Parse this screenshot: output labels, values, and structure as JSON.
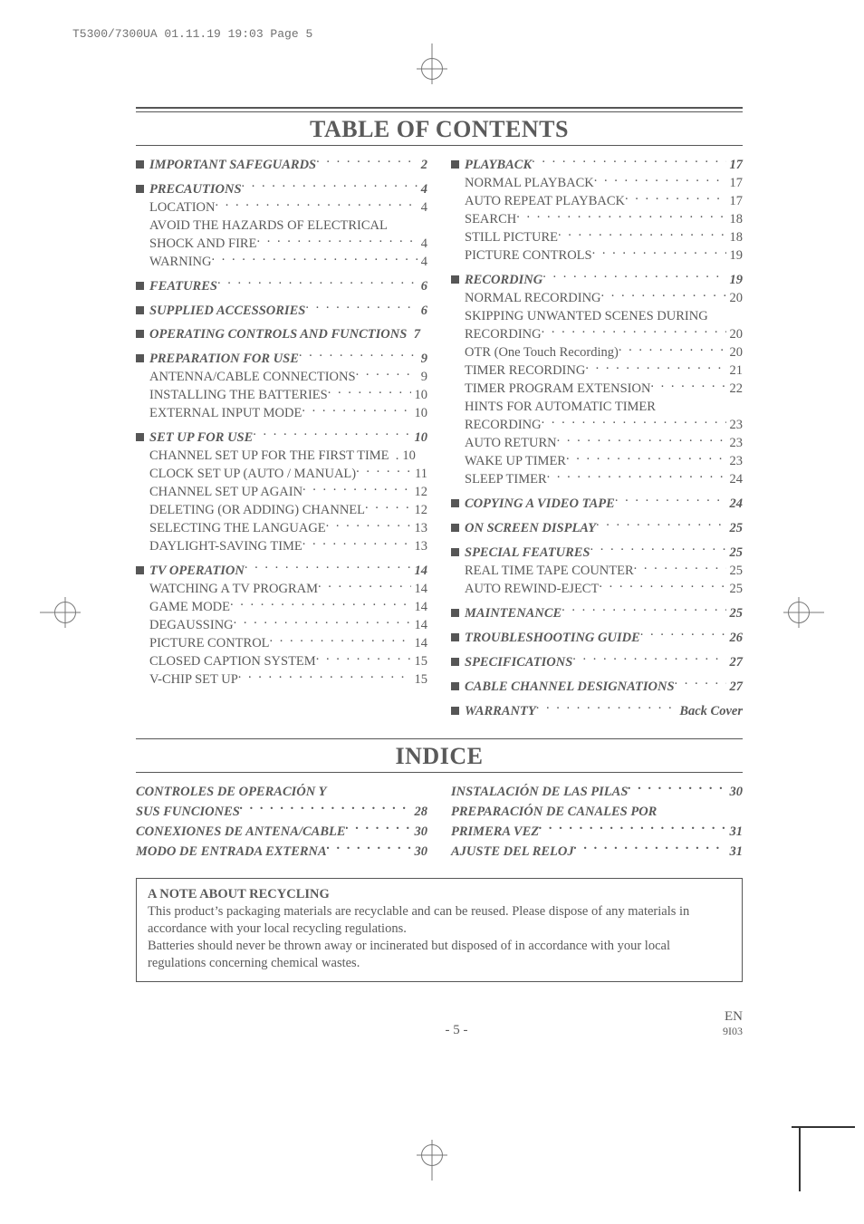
{
  "slug": "T5300/7300UA  01.11.19 19:03  Page 5",
  "heading1": "TABLE OF CONTENTS",
  "heading2": "INDICE",
  "left": [
    {
      "type": "h",
      "label": "IMPORTANT SAFEGUARDS",
      "page": "2"
    },
    {
      "type": "gap"
    },
    {
      "type": "h",
      "label": "PRECAUTIONS",
      "page": "4"
    },
    {
      "type": "s",
      "label": "LOCATION",
      "page": "4"
    },
    {
      "type": "s",
      "label": "AVOID THE HAZARDS OF ELECTRICAL",
      "nopage": true
    },
    {
      "type": "s",
      "label": "SHOCK AND FIRE",
      "page": "4",
      "cont": true
    },
    {
      "type": "s",
      "label": "WARNING",
      "page": "4"
    },
    {
      "type": "gap"
    },
    {
      "type": "h",
      "label": "FEATURES",
      "page": "6"
    },
    {
      "type": "gap"
    },
    {
      "type": "h",
      "label": "SUPPLIED ACCESSORIES",
      "page": "6"
    },
    {
      "type": "gap"
    },
    {
      "type": "h",
      "label": "OPERATING CONTROLS AND FUNCTIONS",
      "page": "7",
      "tight": true
    },
    {
      "type": "gap"
    },
    {
      "type": "h",
      "label": "PREPARATION FOR USE",
      "page": "9"
    },
    {
      "type": "s",
      "label": "ANTENNA/CABLE CONNECTIONS",
      "page": "9"
    },
    {
      "type": "s",
      "label": "INSTALLING THE BATTERIES",
      "page": "10"
    },
    {
      "type": "s",
      "label": "EXTERNAL INPUT MODE",
      "page": "10"
    },
    {
      "type": "gap"
    },
    {
      "type": "h",
      "label": "SET UP FOR USE",
      "page": "10"
    },
    {
      "type": "s",
      "label": "CHANNEL SET UP FOR THE FIRST TIME",
      "page": "10",
      "tight": true
    },
    {
      "type": "s",
      "label": "CLOCK SET UP (AUTO / MANUAL)",
      "page": "11"
    },
    {
      "type": "s",
      "label": "CHANNEL SET UP AGAIN",
      "page": "12"
    },
    {
      "type": "s",
      "label": "DELETING (OR ADDING) CHANNEL",
      "page": "12"
    },
    {
      "type": "s",
      "label": "SELECTING THE LANGUAGE",
      "page": "13"
    },
    {
      "type": "s",
      "label": "DAYLIGHT-SAVING TIME",
      "page": "13"
    },
    {
      "type": "gap"
    },
    {
      "type": "h",
      "label": "TV OPERATION",
      "page": "14"
    },
    {
      "type": "s",
      "label": "WATCHING A TV PROGRAM",
      "page": "14"
    },
    {
      "type": "s",
      "label": "GAME MODE",
      "page": "14"
    },
    {
      "type": "s",
      "label": "DEGAUSSING",
      "page": "14"
    },
    {
      "type": "s",
      "label": "PICTURE CONTROL",
      "page": "14"
    },
    {
      "type": "s",
      "label": "CLOSED CAPTION SYSTEM",
      "page": "15"
    },
    {
      "type": "s",
      "label": "V-CHIP SET UP",
      "page": "15"
    }
  ],
  "right": [
    {
      "type": "h",
      "label": "PLAYBACK",
      "page": "17"
    },
    {
      "type": "s",
      "label": "NORMAL PLAYBACK",
      "page": "17"
    },
    {
      "type": "s",
      "label": "AUTO REPEAT PLAYBACK",
      "page": "17"
    },
    {
      "type": "s",
      "label": "SEARCH",
      "page": "18"
    },
    {
      "type": "s",
      "label": "STILL PICTURE",
      "page": "18"
    },
    {
      "type": "s",
      "label": "PICTURE CONTROLS",
      "page": "19"
    },
    {
      "type": "gap"
    },
    {
      "type": "h",
      "label": "RECORDING",
      "page": "19"
    },
    {
      "type": "s",
      "label": "NORMAL RECORDING",
      "page": "20"
    },
    {
      "type": "s",
      "label": "SKIPPING UNWANTED SCENES DURING",
      "nopage": true
    },
    {
      "type": "s",
      "label": "RECORDING",
      "page": "20",
      "cont": true
    },
    {
      "type": "s",
      "label": "OTR (One Touch Recording)",
      "page": "20"
    },
    {
      "type": "s",
      "label": "TIMER RECORDING",
      "page": "21"
    },
    {
      "type": "s",
      "label": "TIMER PROGRAM EXTENSION",
      "page": "22"
    },
    {
      "type": "s",
      "label": "HINTS FOR AUTOMATIC TIMER",
      "nopage": true
    },
    {
      "type": "s",
      "label": "RECORDING",
      "page": "23",
      "cont": true
    },
    {
      "type": "s",
      "label": "AUTO RETURN",
      "page": "23"
    },
    {
      "type": "s",
      "label": "WAKE UP TIMER",
      "page": "23"
    },
    {
      "type": "s",
      "label": "SLEEP TIMER",
      "page": "24"
    },
    {
      "type": "gap"
    },
    {
      "type": "h",
      "label": "COPYING A VIDEO TAPE",
      "page": "24"
    },
    {
      "type": "gap"
    },
    {
      "type": "h",
      "label": "ON SCREEN DISPLAY",
      "page": "25"
    },
    {
      "type": "gap"
    },
    {
      "type": "h",
      "label": "SPECIAL FEATURES",
      "page": "25"
    },
    {
      "type": "s",
      "label": "REAL TIME TAPE COUNTER",
      "page": "25"
    },
    {
      "type": "s",
      "label": "AUTO REWIND-EJECT",
      "page": "25"
    },
    {
      "type": "gap"
    },
    {
      "type": "h",
      "label": "MAINTENANCE",
      "page": "25"
    },
    {
      "type": "gap"
    },
    {
      "type": "h",
      "label": "TROUBLESHOOTING GUIDE",
      "page": "26"
    },
    {
      "type": "gap"
    },
    {
      "type": "h",
      "label": "SPECIFICATIONS",
      "page": "27"
    },
    {
      "type": "gap"
    },
    {
      "type": "h",
      "label": "CABLE CHANNEL DESIGNATIONS",
      "page": "27"
    },
    {
      "type": "gap"
    },
    {
      "type": "h",
      "label": "WARRANTY",
      "page": "Back Cover"
    }
  ],
  "indice_left": [
    {
      "label": "CONTROLES DE OPERACIÓN Y",
      "nopage": true
    },
    {
      "label": "SUS FUNCIONES",
      "page": "28",
      "cont": true
    },
    {
      "label": "CONEXIONES DE ANTENA/CABLE",
      "page": "30"
    },
    {
      "label": "MODO DE ENTRADA EXTERNA",
      "page": "30"
    }
  ],
  "indice_right": [
    {
      "label": "INSTALACIÓN DE LAS PILAS",
      "page": "30"
    },
    {
      "label": "PREPARACIÓN DE CANALES POR",
      "nopage": true
    },
    {
      "label": "PRIMERA VEZ",
      "page": "31",
      "cont": true
    },
    {
      "label": "AJUSTE DEL RELOJ",
      "page": "31"
    }
  ],
  "note": {
    "title": "A NOTE ABOUT RECYCLING",
    "p1": "This product’s packaging materials are recyclable and can be reused. Please dispose of any materials in accordance with your local recycling regulations.",
    "p2": "Batteries should never be thrown away or incinerated but disposed of in accordance with your local regulations concerning chemical wastes."
  },
  "footer": {
    "page": "- 5 -",
    "lang": "EN",
    "code": "9I03"
  }
}
